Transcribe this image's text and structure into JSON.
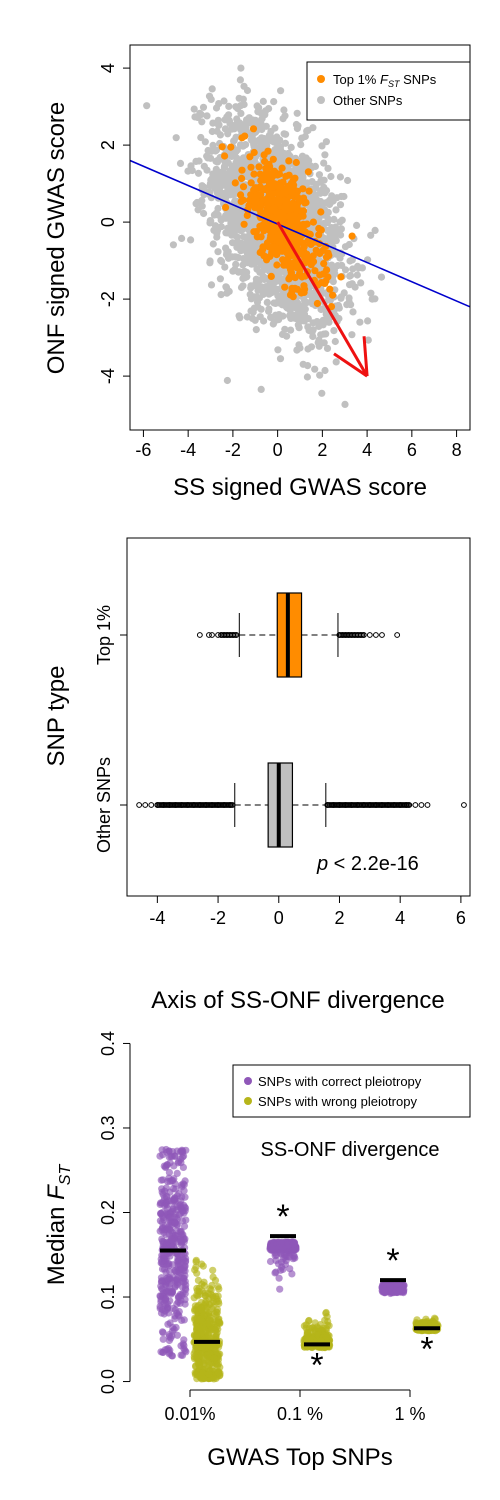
{
  "colors": {
    "top": "#ff8c00",
    "other": "#c0c0c0",
    "regline": "#0000cc",
    "arrow": "#ee1111",
    "correct": "#8f57b8",
    "wrong": "#b6b51a"
  },
  "chart_data": [
    {
      "type": "scatter",
      "title": "",
      "xlabel": "SS signed GWAS score",
      "ylabel": "ONF signed GWAS score",
      "xlim": [
        -6.6,
        8.6
      ],
      "ylim": [
        -5.4,
        4.6
      ],
      "xticks": [
        -6,
        -4,
        -2,
        0,
        2,
        4,
        6,
        8
      ],
      "xtick_labels": [
        "-6",
        "-4",
        "-2",
        "0",
        "2",
        "4",
        "6",
        "8"
      ],
      "yticks": [
        -4,
        -2,
        0,
        2,
        4
      ],
      "ytick_labels": [
        "-4",
        "-2",
        "0",
        "2",
        "4"
      ],
      "legend": {
        "position": "top-right",
        "entries": [
          {
            "key": "top",
            "label_main": "Top 1% ",
            "label_f": "F",
            "label_sub": "ST",
            "label_tail": " SNPs"
          },
          {
            "key": "other",
            "label_main": "Other SNPs"
          }
        ]
      },
      "regression_line": {
        "from": [
          -6.6,
          1.6
        ],
        "to": [
          8.6,
          -2.2
        ]
      },
      "arrow": {
        "from": [
          0,
          0
        ],
        "to": [
          4,
          -4
        ]
      },
      "series": [
        {
          "key": "other",
          "n": 2200,
          "sx": 1.45,
          "sy": 1.35,
          "rho": -0.45
        },
        {
          "key": "top",
          "n": 520,
          "sx": 0.85,
          "sy": 0.85,
          "rho": -0.6
        }
      ]
    },
    {
      "type": "box",
      "xlabel": "Axis of SS-ONF divergence",
      "ylabel": "SNP type",
      "xlim": [
        -5,
        6.3
      ],
      "xticks": [
        -4,
        -2,
        0,
        2,
        4,
        6
      ],
      "xtick_labels": [
        "-4",
        "-2",
        "0",
        "2",
        "4",
        "6"
      ],
      "annotation": {
        "p": "p",
        "rest": " < 2.2e-16"
      },
      "groups": [
        {
          "name": "Top 1%",
          "key": "top",
          "q1": -0.05,
          "median": 0.3,
          "q3": 0.75,
          "whisker_low": -1.3,
          "whisker_high": 1.95,
          "outliers_low": [
            -2.6,
            -2.3,
            -2.2,
            -2.0,
            -1.9,
            -1.8,
            -1.7,
            -1.6,
            -1.5,
            -1.4
          ],
          "outliers_high": [
            2.0,
            2.1,
            2.2,
            2.3,
            2.4,
            2.5,
            2.6,
            2.7,
            2.8,
            3.0,
            3.2,
            3.4,
            3.9
          ]
        },
        {
          "name": "Other SNPs",
          "key": "other",
          "q1": -0.35,
          "median": 0.0,
          "q3": 0.45,
          "whisker_low": -1.45,
          "whisker_high": 1.55,
          "outliers_low": [
            -4.6,
            -4.4,
            -4.2,
            -4.0,
            -3.8,
            -3.6,
            -3.4,
            -3.2,
            -3.0,
            -2.8,
            -2.6,
            -2.4,
            -2.2,
            -2.0,
            -1.8,
            -1.6
          ],
          "outliers_high": [
            1.6,
            1.8,
            2.0,
            2.2,
            2.4,
            2.6,
            2.8,
            3.0,
            3.2,
            3.4,
            3.6,
            3.8,
            4.0,
            4.2,
            4.3,
            4.5,
            4.7,
            4.9,
            6.1
          ]
        }
      ]
    },
    {
      "type": "strip",
      "xlabel": "GWAS Top SNPs",
      "ylabel_main": "Median ",
      "ylabel_f": "F",
      "ylabel_sub": "ST",
      "ylim": [
        -0.01,
        0.41
      ],
      "yticks": [
        0.0,
        0.1,
        0.2,
        0.3,
        0.4
      ],
      "ytick_labels": [
        "0.0",
        "0.1",
        "0.2",
        "0.3",
        "0.4"
      ],
      "categories": [
        "0.01%",
        "0.1 %",
        "1 %"
      ],
      "annotation": "SS-ONF divergence",
      "legend": {
        "position": "top-right",
        "entries": [
          {
            "key": "correct",
            "label": "SNPs with correct pleiotropy"
          },
          {
            "key": "wrong",
            "label": "SNPs with wrong pleiotropy"
          }
        ]
      },
      "series": [
        {
          "name": "SNPs with correct pleiotropy",
          "key": "correct",
          "medians": [
            0.155,
            0.172,
            0.12
          ],
          "ranges": [
            [
              0.03,
              0.275
            ],
            [
              0.09,
              0.165
            ],
            [
              0.09,
              0.115
            ]
          ],
          "significant": [
            false,
            true,
            true
          ]
        },
        {
          "name": "SNPs with wrong pleiotropy",
          "key": "wrong",
          "medians": [
            0.047,
            0.044,
            0.063
          ],
          "ranges": [
            [
              0.003,
              0.15
            ],
            [
              0.04,
              0.097
            ],
            [
              0.06,
              0.078
            ]
          ],
          "significant": [
            false,
            true,
            true
          ]
        }
      ]
    }
  ]
}
